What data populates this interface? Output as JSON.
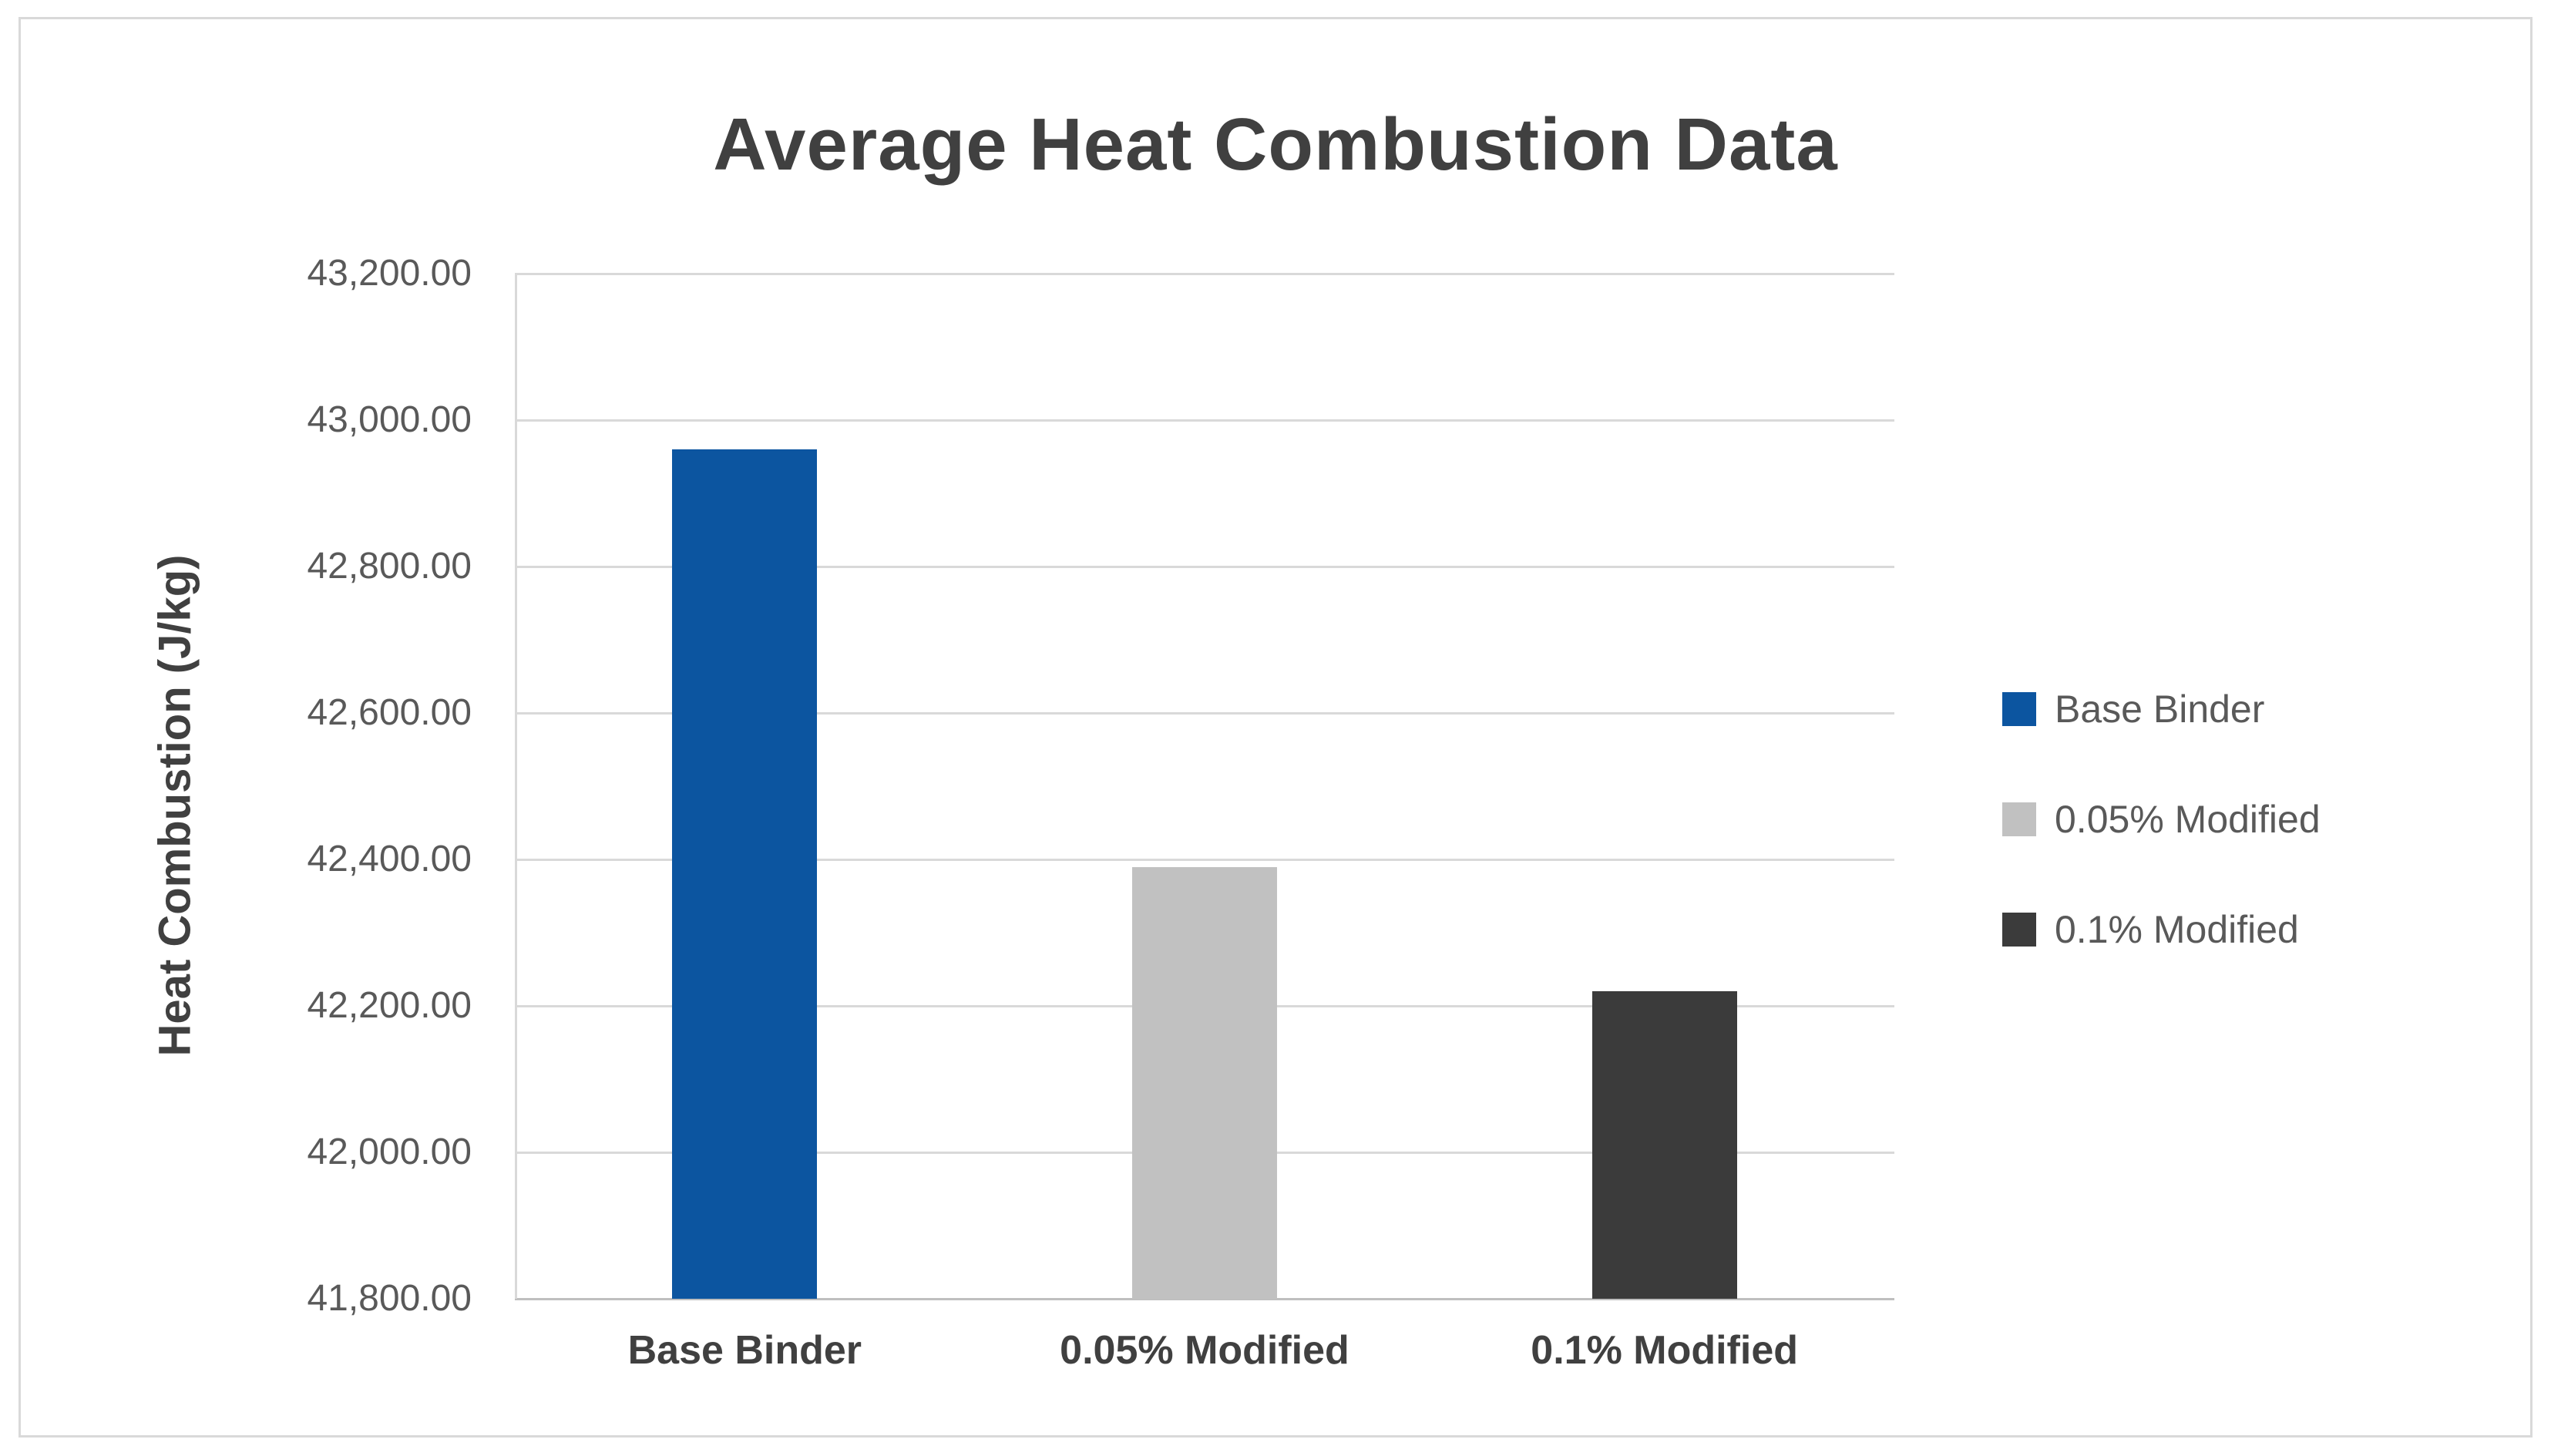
{
  "chart_data": {
    "type": "bar",
    "title": "Average Heat Combustion Data",
    "ylabel": "Heat Combustion (J/kg)",
    "xlabel": "",
    "categories": [
      "Base Binder",
      "0.05% Modified",
      "0.1% Modified"
    ],
    "values": [
      42960,
      42390,
      42220
    ],
    "bar_colors": [
      "#0C55A0",
      "#C1C1C1",
      "#3B3B3B"
    ],
    "ylim": [
      41800,
      43200
    ],
    "ytick_step": 200,
    "yticks": [
      41800,
      42000,
      42200,
      42400,
      42600,
      42800,
      43000,
      43200
    ],
    "ytick_labels": [
      "41,800.00",
      "42,000.00",
      "42,200.00",
      "42,400.00",
      "42,600.00",
      "42,800.00",
      "43,000.00",
      "43,200.00"
    ],
    "grid": true,
    "legend": {
      "position": "right",
      "entries": [
        {
          "label": "Base Binder",
          "color": "#0C55A0"
        },
        {
          "label": "0.05% Modified",
          "color": "#C1C1C1"
        },
        {
          "label": "0.1% Modified",
          "color": "#3B3B3B"
        }
      ]
    }
  },
  "colors": {
    "background": "#FFFFFF",
    "frame_border": "#D9D9D9",
    "gridline": "#D9D9D9",
    "axis_line": "#BFBFBF",
    "title_text": "#404040",
    "axis_title_text": "#404040",
    "tick_label_text": "#595959",
    "category_label_text": "#404040",
    "legend_text": "#595959"
  }
}
